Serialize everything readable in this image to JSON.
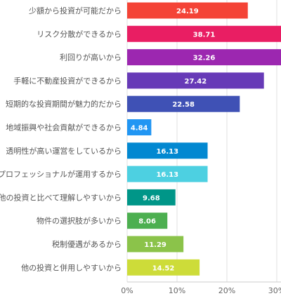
{
  "chart_data": {
    "type": "bar",
    "orientation": "horizontal",
    "categories": [
      "少額から投資が可能だから",
      "リスク分散ができるから",
      "利回りが高いから",
      "手軽に不動産投資ができるから",
      "短期的な投資期間が魅力的だから",
      "地域振興や社会貢献ができるから",
      "透明性が高い運営をしているから",
      "プロフェッショナルが運用するから",
      "他の投資と比べて理解しやすいから",
      "物件の選択肢が多いから",
      "税制優遇があるから",
      "他の投資と併用しやすいから"
    ],
    "values": [
      24.19,
      38.71,
      32.26,
      27.42,
      22.58,
      4.84,
      16.13,
      16.13,
      9.68,
      8.06,
      11.29,
      14.52
    ],
    "value_labels": [
      "24.19",
      "38.71",
      "32.26",
      "27.42",
      "22.58",
      "4.84",
      "16.13",
      "16.13",
      "9.68",
      "8.06",
      "11.29",
      "14.52"
    ],
    "colors": [
      "#f44336",
      "#e91e63",
      "#9c27b0",
      "#673ab7",
      "#3f51b5",
      "#2196f3",
      "#0288d1",
      "#4dd0e1",
      "#009688",
      "#4caf50",
      "#8bc34a",
      "#cddc39"
    ],
    "x_ticks": [
      0,
      10,
      20,
      30
    ],
    "x_tick_labels": [
      "0%",
      "10%",
      "20%",
      "30%"
    ],
    "xlim": [
      0,
      30
    ],
    "grid": true,
    "legend": "none"
  }
}
